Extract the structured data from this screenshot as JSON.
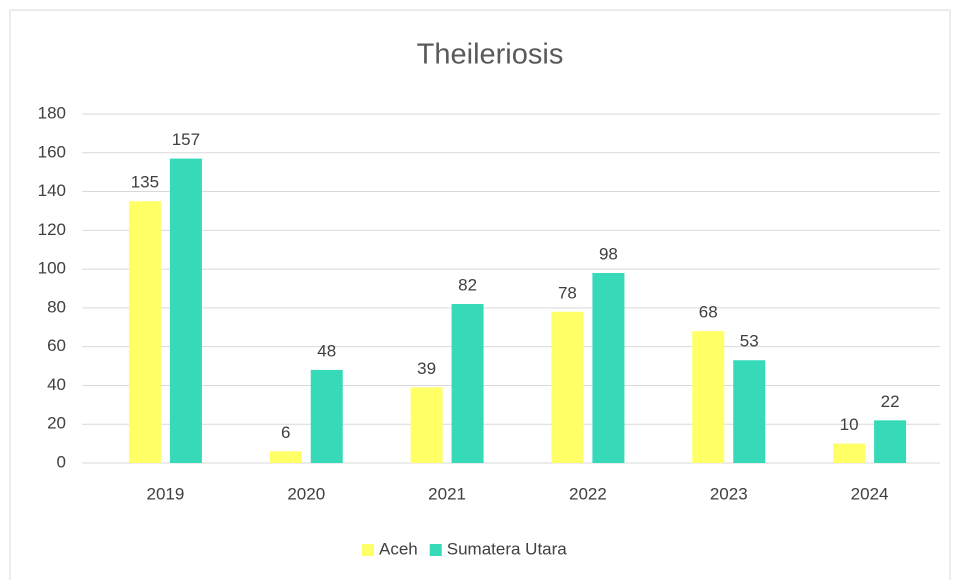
{
  "chart_data": {
    "type": "bar",
    "title": "Theileriosis",
    "categories": [
      "2019",
      "2020",
      "2021",
      "2022",
      "2023",
      "2024"
    ],
    "series": [
      {
        "name": "Aceh",
        "color": "#ffff66",
        "values": [
          135,
          6,
          39,
          78,
          68,
          10
        ]
      },
      {
        "name": "Sumatera Utara",
        "color": "#36d9b8",
        "values": [
          157,
          48,
          82,
          98,
          53,
          22
        ]
      }
    ],
    "ylim": [
      0,
      180
    ],
    "yticks": [
      0,
      20,
      40,
      60,
      80,
      100,
      120,
      140,
      160,
      180
    ],
    "grid": true,
    "legend": "bottom"
  }
}
